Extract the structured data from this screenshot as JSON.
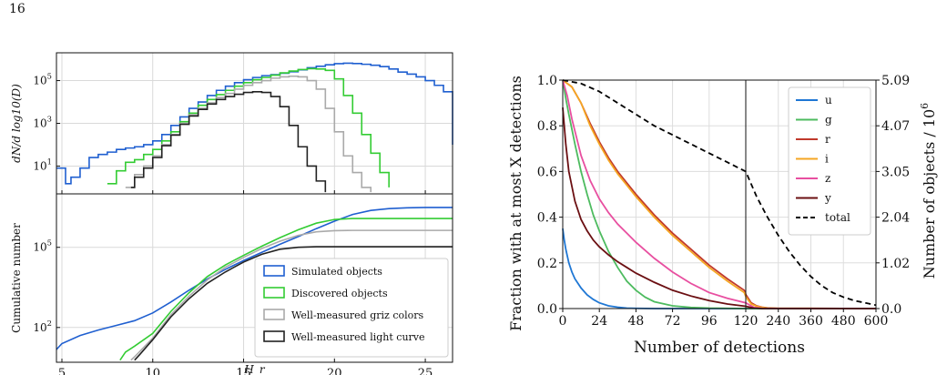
{
  "page_number": "16",
  "chart_data": [
    {
      "type": "line",
      "subtype": "step-histogram",
      "panel": "top",
      "xlabel": "H_r",
      "ylabel": "dN/d log10(D)",
      "yscale": "log",
      "xlim": [
        4.7,
        26.5
      ],
      "ylim": [
        0.5,
        2000000
      ],
      "xticks": [
        5,
        10,
        15,
        20,
        25
      ],
      "yticks": [
        10,
        1000,
        100000
      ],
      "ytick_labels": [
        "10^1",
        "10^3",
        "10^5"
      ],
      "grid": true,
      "series": [
        {
          "name": "Simulated objects",
          "color": "#1f5fd0",
          "x": [
            4.7,
            5.2,
            5.5,
            6,
            6.5,
            7,
            7.5,
            8,
            8.5,
            9,
            9.5,
            10,
            10.5,
            11,
            11.5,
            12,
            12.5,
            13,
            13.5,
            14,
            14.5,
            15,
            15.5,
            16,
            16.5,
            17,
            17.5,
            18,
            18.5,
            19,
            19.5,
            20,
            20.5,
            21,
            21.5,
            22,
            22.5,
            23,
            23.5,
            24,
            24.5,
            25,
            25.5,
            26,
            26.5
          ],
          "y": [
            8,
            1.5,
            3,
            8,
            25,
            35,
            45,
            60,
            70,
            80,
            100,
            150,
            300,
            800,
            2000,
            5000,
            10000,
            20000,
            35000,
            55000,
            80000,
            110000,
            140000,
            170000,
            190000,
            220000,
            260000,
            320000,
            400000,
            470000,
            550000,
            620000,
            650000,
            630000,
            580000,
            520000,
            450000,
            350000,
            250000,
            200000,
            150000,
            100000,
            60000,
            30000,
            100
          ]
        },
        {
          "name": "Discovered objects",
          "color": "#33cc33",
          "x": [
            7.5,
            8,
            8.5,
            9,
            9.5,
            10,
            10.5,
            11,
            11.5,
            12,
            12.5,
            13,
            13.5,
            14,
            14.5,
            15,
            15.5,
            16,
            16.5,
            17,
            17.5,
            18,
            18.5,
            19,
            19.5,
            20,
            20.5,
            21,
            21.5,
            22,
            22.5,
            23
          ],
          "y": [
            1.5,
            6,
            15,
            20,
            35,
            60,
            150,
            400,
            1200,
            3000,
            7000,
            13000,
            22000,
            35000,
            55000,
            80000,
            110000,
            140000,
            180000,
            230000,
            280000,
            330000,
            360000,
            350000,
            300000,
            120000,
            20000,
            3000,
            300,
            40,
            5,
            1
          ]
        },
        {
          "name": "Well-measured griz colors",
          "color": "#aaaaaa",
          "x": [
            8.5,
            9,
            9.5,
            10,
            10.5,
            11,
            11.5,
            12,
            12.5,
            13,
            13.5,
            14,
            14.5,
            15,
            15.5,
            16,
            16.5,
            17,
            17.5,
            18,
            18.5,
            19,
            19.5,
            20,
            20.5,
            21,
            21.5,
            22
          ],
          "y": [
            1,
            4,
            10,
            30,
            100,
            300,
            1000,
            2500,
            5000,
            9000,
            16000,
            25000,
            40000,
            60000,
            80000,
            100000,
            130000,
            150000,
            160000,
            150000,
            100000,
            40000,
            5000,
            400,
            30,
            5,
            1,
            0.6
          ]
        },
        {
          "name": "Well-measured light curve",
          "color": "#222222",
          "x": [
            8.8,
            9,
            9.5,
            10,
            10.5,
            11,
            11.5,
            12,
            12.5,
            13,
            13.5,
            14,
            14.5,
            15,
            15.5,
            16,
            16.5,
            17,
            17.5,
            18,
            18.5,
            19,
            19.5
          ],
          "y": [
            1,
            3,
            8,
            25,
            90,
            280,
            900,
            2200,
            4500,
            8000,
            13000,
            18000,
            23000,
            28000,
            30000,
            28000,
            18000,
            6000,
            800,
            80,
            10,
            2,
            0.6
          ]
        }
      ]
    },
    {
      "type": "line",
      "panel": "bottom",
      "xlabel": "H_r",
      "ylabel": "Cumulative number",
      "yscale": "log",
      "xlim": [
        4.7,
        26.5
      ],
      "ylim": [
        5,
        10000000
      ],
      "xticks": [
        5,
        10,
        15,
        20,
        25
      ],
      "yticks": [
        100,
        100000
      ],
      "ytick_labels": [
        "10^2",
        "10^5"
      ],
      "legend": "lower-right",
      "grid": true,
      "series": [
        {
          "name": "Simulated objects",
          "color": "#1f5fd0",
          "x": [
            4.7,
            5,
            6,
            7,
            8,
            9,
            10,
            11,
            12,
            13,
            14,
            15,
            16,
            17,
            18,
            19,
            20,
            21,
            22,
            23,
            24,
            25,
            26.5
          ],
          "y": [
            15,
            25,
            50,
            80,
            120,
            180,
            350,
            900,
            2500,
            6500,
            15000,
            32000,
            65000,
            130000,
            250000,
            500000,
            950000,
            1700000,
            2400000,
            2800000,
            3000000,
            3100000,
            3100000
          ]
        },
        {
          "name": "Discovered objects",
          "color": "#33cc33",
          "x": [
            8.2,
            8.5,
            9,
            10,
            11,
            12,
            13,
            14,
            15,
            16,
            17,
            18,
            19,
            20,
            21,
            22,
            23,
            26.5
          ],
          "y": [
            6,
            12,
            20,
            60,
            400,
            2000,
            8000,
            22000,
            50000,
            110000,
            230000,
            450000,
            800000,
            1100000,
            1200000,
            1200000,
            1200000,
            1200000
          ]
        },
        {
          "name": "Well-measured griz colors",
          "color": "#aaaaaa",
          "x": [
            8.8,
            9,
            10,
            11,
            12,
            13,
            14,
            15,
            16,
            17,
            18,
            19,
            20,
            21,
            22,
            26.5
          ],
          "y": [
            6,
            8,
            40,
            300,
            1500,
            6000,
            18000,
            42000,
            90000,
            170000,
            280000,
            380000,
            420000,
            430000,
            430000,
            430000
          ]
        },
        {
          "name": "Well-measured light curve",
          "color": "#222222",
          "x": [
            9,
            9.3,
            10,
            11,
            12,
            13,
            14,
            15,
            16,
            17,
            18,
            19,
            26.5
          ],
          "y": [
            6,
            10,
            35,
            250,
            1200,
            4500,
            12000,
            28000,
            55000,
            85000,
            100000,
            105000,
            105000
          ]
        }
      ]
    },
    {
      "type": "line",
      "panel": "right",
      "xlabel": "Number of detections",
      "ylabel": "Fraction with at most X detections",
      "y2label": "Number of objects / 10^6",
      "x_segment_1": {
        "xlim": [
          0,
          120
        ],
        "xticks": [
          0,
          24,
          48,
          72,
          96,
          120
        ]
      },
      "x_segment_2": {
        "xlim": [
          120,
          600
        ],
        "xticks": [
          120,
          240,
          360,
          480,
          600
        ]
      },
      "x_split": 120,
      "ylim": [
        0,
        1
      ],
      "yticks": [
        0.0,
        0.2,
        0.4,
        0.6,
        0.8,
        1.0
      ],
      "y2ticks": [
        0.0,
        1.02,
        2.04,
        3.05,
        4.07,
        5.09
      ],
      "legend": "top-right",
      "grid": true,
      "series": [
        {
          "name": "u",
          "color": "#1f77d4",
          "x": [
            0,
            1,
            2,
            4,
            6,
            8,
            12,
            16,
            20,
            24,
            30,
            36,
            42,
            48,
            60,
            72,
            600
          ],
          "y": [
            0.35,
            0.3,
            0.26,
            0.2,
            0.16,
            0.13,
            0.09,
            0.06,
            0.04,
            0.025,
            0.012,
            0.006,
            0.002,
            0.001,
            0,
            0,
            0
          ]
        },
        {
          "name": "g",
          "color": "#4dbb5f",
          "x": [
            0,
            2,
            4,
            8,
            12,
            16,
            20,
            24,
            30,
            36,
            42,
            48,
            54,
            60,
            72,
            84,
            96,
            120,
            150,
            600
          ],
          "y": [
            1.0,
            0.92,
            0.85,
            0.72,
            0.6,
            0.5,
            0.41,
            0.34,
            0.25,
            0.18,
            0.12,
            0.08,
            0.05,
            0.03,
            0.012,
            0.005,
            0.002,
            0,
            0,
            0
          ]
        },
        {
          "name": "r",
          "color": "#c0392b",
          "x": [
            0,
            6,
            12,
            18,
            24,
            30,
            36,
            42,
            48,
            60,
            72,
            84,
            96,
            108,
            119,
            121,
            140,
            160,
            180,
            200,
            240,
            600
          ],
          "y": [
            1.0,
            0.97,
            0.9,
            0.81,
            0.73,
            0.66,
            0.6,
            0.55,
            0.5,
            0.41,
            0.33,
            0.26,
            0.19,
            0.13,
            0.08,
            0.06,
            0.025,
            0.012,
            0.006,
            0.003,
            0.001,
            0
          ]
        },
        {
          "name": "i",
          "color": "#f5a623",
          "x": [
            0,
            6,
            12,
            18,
            24,
            30,
            36,
            42,
            48,
            60,
            72,
            84,
            96,
            108,
            119,
            121,
            140,
            160,
            180,
            200,
            240,
            600
          ],
          "y": [
            1.0,
            0.97,
            0.9,
            0.8,
            0.72,
            0.65,
            0.59,
            0.54,
            0.49,
            0.4,
            0.32,
            0.25,
            0.18,
            0.12,
            0.07,
            0.05,
            0.02,
            0.01,
            0.005,
            0.002,
            0.001,
            0
          ]
        },
        {
          "name": "z",
          "color": "#e84fa0",
          "x": [
            0,
            3,
            6,
            12,
            18,
            24,
            30,
            36,
            42,
            48,
            60,
            72,
            84,
            96,
            108,
            120,
            150,
            180,
            600
          ],
          "y": [
            1.0,
            0.93,
            0.83,
            0.67,
            0.56,
            0.48,
            0.42,
            0.37,
            0.33,
            0.29,
            0.22,
            0.16,
            0.11,
            0.07,
            0.045,
            0.025,
            0.005,
            0.001,
            0
          ]
        },
        {
          "name": "y",
          "color": "#6b0f12",
          "x": [
            0,
            2,
            4,
            8,
            12,
            16,
            20,
            24,
            30,
            36,
            42,
            48,
            60,
            72,
            84,
            96,
            108,
            120,
            150,
            180,
            600
          ],
          "y": [
            0.88,
            0.72,
            0.6,
            0.47,
            0.39,
            0.34,
            0.3,
            0.27,
            0.235,
            0.205,
            0.18,
            0.155,
            0.115,
            0.08,
            0.055,
            0.035,
            0.02,
            0.01,
            0.002,
            0,
            0
          ]
        },
        {
          "name": "total",
          "color": "#000000",
          "dashed": true,
          "x": [
            0,
            12,
            24,
            36,
            48,
            60,
            72,
            84,
            96,
            108,
            120,
            160,
            200,
            240,
            280,
            320,
            360,
            400,
            440,
            480,
            520,
            560,
            600
          ],
          "y": [
            1.0,
            0.985,
            0.95,
            0.9,
            0.85,
            0.8,
            0.76,
            0.72,
            0.68,
            0.64,
            0.6,
            0.49,
            0.4,
            0.32,
            0.25,
            0.19,
            0.14,
            0.1,
            0.07,
            0.05,
            0.035,
            0.025,
            0.015
          ]
        }
      ]
    }
  ]
}
